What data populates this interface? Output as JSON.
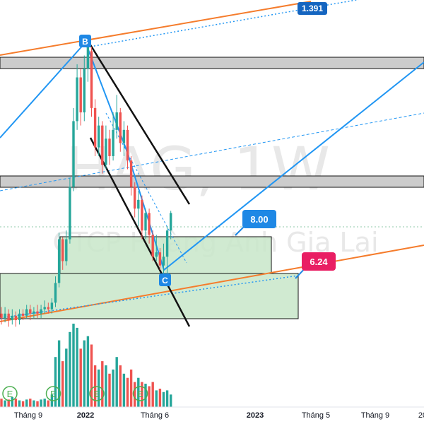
{
  "watermark": {
    "symbol": "HAG, 1W",
    "company": "CTCP Hoàng Anh Gia Lai"
  },
  "pivots": {
    "b": "B",
    "c": "C"
  },
  "labels": {
    "channel_top": "1.391",
    "target1": "8.00",
    "target2": "6.24"
  },
  "xaxis": {
    "ticks": [
      {
        "label": "Tháng 9",
        "week": 5
      },
      {
        "label": "2022",
        "week": 22
      },
      {
        "label": "Tháng 6",
        "week": 44
      },
      {
        "label": "2023",
        "week": 74
      },
      {
        "label": "Tháng 5",
        "week": 91
      },
      {
        "label": "Tháng 9",
        "week": 109
      },
      {
        "label": "20",
        "week": 128
      }
    ]
  },
  "events": [
    {
      "label": "E",
      "week": 0
    },
    {
      "label": "E",
      "week": 14
    },
    {
      "label": "E",
      "week": 28
    },
    {
      "label": "E",
      "week": 41
    }
  ],
  "colors": {
    "up": "#26a69a",
    "down": "#ef5350",
    "trend_blue": "#2196f3",
    "orange": "#f57c2c",
    "channel": "#111111",
    "zone_fill": "#c8e6c9",
    "zone_stroke": "#111111",
    "band_fill": "#cccccc",
    "tag_blue": "#1e88e5",
    "tag_red": "#e91e63",
    "tag_dark": "#1565c0",
    "event": "#4caf50"
  },
  "chart_data": {
    "type": "candlestick",
    "symbol": "HAG",
    "interval": "1W",
    "x_unit": "week index",
    "y_range": [
      3.8,
      13.3
    ],
    "levels": {
      "resistance_band_high": [
        11.3,
        11.55
      ],
      "resistance_band_mid": [
        8.6,
        8.85
      ],
      "zone_upper": [
        6.25,
        7.2
      ],
      "zone_lower": [
        5.1,
        6.3
      ]
    },
    "pivots": [
      {
        "name": "B",
        "week": 24,
        "price": 11.8
      },
      {
        "name": "C",
        "week": 46,
        "price": 6.4
      }
    ],
    "price_tags": [
      {
        "text": "1.391",
        "price": 13.3
      },
      {
        "text": "8.00",
        "price": 7.9
      },
      {
        "text": "6.24",
        "price": 6.55
      }
    ],
    "candles": [
      [
        0,
        5.6,
        5.5,
        5.75,
        5.35
      ],
      [
        1,
        5.5,
        5.6,
        5.75,
        5.4
      ],
      [
        2,
        5.6,
        5.45,
        5.7,
        5.3
      ],
      [
        3,
        5.45,
        5.55,
        5.7,
        5.35
      ],
      [
        4,
        5.55,
        5.45,
        5.65,
        5.3
      ],
      [
        5,
        5.45,
        5.6,
        5.7,
        5.35
      ],
      [
        6,
        5.6,
        5.55,
        5.7,
        5.45
      ],
      [
        7,
        5.55,
        5.7,
        5.8,
        5.5
      ],
      [
        8,
        5.7,
        5.6,
        5.8,
        5.45
      ],
      [
        9,
        5.6,
        5.65,
        5.75,
        5.5
      ],
      [
        10,
        5.65,
        5.6,
        5.8,
        5.5
      ],
      [
        11,
        5.6,
        5.7,
        5.8,
        5.5
      ],
      [
        12,
        5.7,
        5.75,
        5.9,
        5.6
      ],
      [
        13,
        5.75,
        5.7,
        5.85,
        5.6
      ],
      [
        14,
        5.7,
        5.85,
        5.95,
        5.6
      ],
      [
        15,
        5.85,
        6.3,
        6.45,
        5.75
      ],
      [
        16,
        6.3,
        7.3,
        7.45,
        6.2
      ],
      [
        17,
        7.3,
        6.8,
        7.35,
        6.6
      ],
      [
        18,
        6.8,
        7.3,
        7.5,
        6.7
      ],
      [
        19,
        7.3,
        8.5,
        8.7,
        7.2
      ],
      [
        20,
        8.5,
        10.0,
        10.3,
        8.4
      ],
      [
        21,
        10.0,
        11.0,
        11.3,
        9.8
      ],
      [
        22,
        11.0,
        10.2,
        11.2,
        9.9
      ],
      [
        23,
        10.2,
        11.2,
        11.5,
        10.0
      ],
      [
        24,
        11.2,
        11.7,
        11.8,
        10.9
      ],
      [
        25,
        11.6,
        10.3,
        11.7,
        10.1
      ],
      [
        26,
        10.3,
        9.4,
        10.5,
        9.2
      ],
      [
        27,
        9.4,
        9.9,
        10.1,
        9.2
      ],
      [
        28,
        9.9,
        9.0,
        10.0,
        8.8
      ],
      [
        29,
        9.0,
        9.6,
        9.9,
        8.9
      ],
      [
        30,
        9.6,
        9.2,
        9.8,
        9.0
      ],
      [
        31,
        9.2,
        9.8,
        10.2,
        9.1
      ],
      [
        32,
        9.8,
        10.2,
        10.6,
        9.6
      ],
      [
        33,
        10.2,
        9.5,
        10.3,
        9.3
      ],
      [
        34,
        9.5,
        9.8,
        10.0,
        9.2
      ],
      [
        35,
        9.8,
        9.1,
        9.9,
        8.9
      ],
      [
        36,
        9.1,
        8.5,
        9.2,
        8.3
      ],
      [
        37,
        8.5,
        8.0,
        8.6,
        7.8
      ],
      [
        38,
        8.0,
        8.2,
        8.4,
        7.6
      ],
      [
        39,
        8.2,
        7.5,
        8.3,
        7.3
      ],
      [
        40,
        7.5,
        7.9,
        8.0,
        7.3
      ],
      [
        41,
        7.9,
        7.4,
        8.0,
        7.2
      ],
      [
        42,
        7.4,
        6.9,
        7.5,
        6.8
      ],
      [
        43,
        6.9,
        7.0,
        7.4,
        6.8
      ],
      [
        44,
        7.0,
        6.7,
        7.1,
        6.6
      ],
      [
        45,
        6.7,
        6.9,
        7.2,
        6.5
      ],
      [
        46,
        6.9,
        7.5,
        7.6,
        6.4
      ],
      [
        47,
        7.5,
        7.9,
        7.95,
        7.3
      ]
    ],
    "volumes": [
      [
        0,
        0.1
      ],
      [
        1,
        0.08
      ],
      [
        2,
        0.09
      ],
      [
        3,
        0.12
      ],
      [
        4,
        0.1
      ],
      [
        5,
        0.08
      ],
      [
        6,
        0.07
      ],
      [
        7,
        0.09
      ],
      [
        8,
        0.1
      ],
      [
        9,
        0.08
      ],
      [
        10,
        0.07
      ],
      [
        11,
        0.09
      ],
      [
        12,
        0.1
      ],
      [
        13,
        0.08
      ],
      [
        14,
        0.15
      ],
      [
        15,
        0.6
      ],
      [
        16,
        0.8
      ],
      [
        17,
        0.55
      ],
      [
        18,
        0.7
      ],
      [
        19,
        0.9
      ],
      [
        20,
        1.0
      ],
      [
        21,
        0.95
      ],
      [
        22,
        0.7
      ],
      [
        23,
        0.8
      ],
      [
        24,
        0.85
      ],
      [
        25,
        0.75
      ],
      [
        26,
        0.5
      ],
      [
        27,
        0.45
      ],
      [
        28,
        0.55
      ],
      [
        29,
        0.5
      ],
      [
        30,
        0.4
      ],
      [
        31,
        0.45
      ],
      [
        32,
        0.6
      ],
      [
        33,
        0.5
      ],
      [
        34,
        0.4
      ],
      [
        35,
        0.35
      ],
      [
        36,
        0.45
      ],
      [
        37,
        0.3
      ],
      [
        38,
        0.35
      ],
      [
        39,
        0.3
      ],
      [
        40,
        0.28
      ],
      [
        41,
        0.25
      ],
      [
        42,
        0.3
      ],
      [
        43,
        0.2
      ],
      [
        44,
        0.22
      ],
      [
        45,
        0.18
      ],
      [
        46,
        0.2
      ],
      [
        47,
        0.15
      ]
    ]
  }
}
